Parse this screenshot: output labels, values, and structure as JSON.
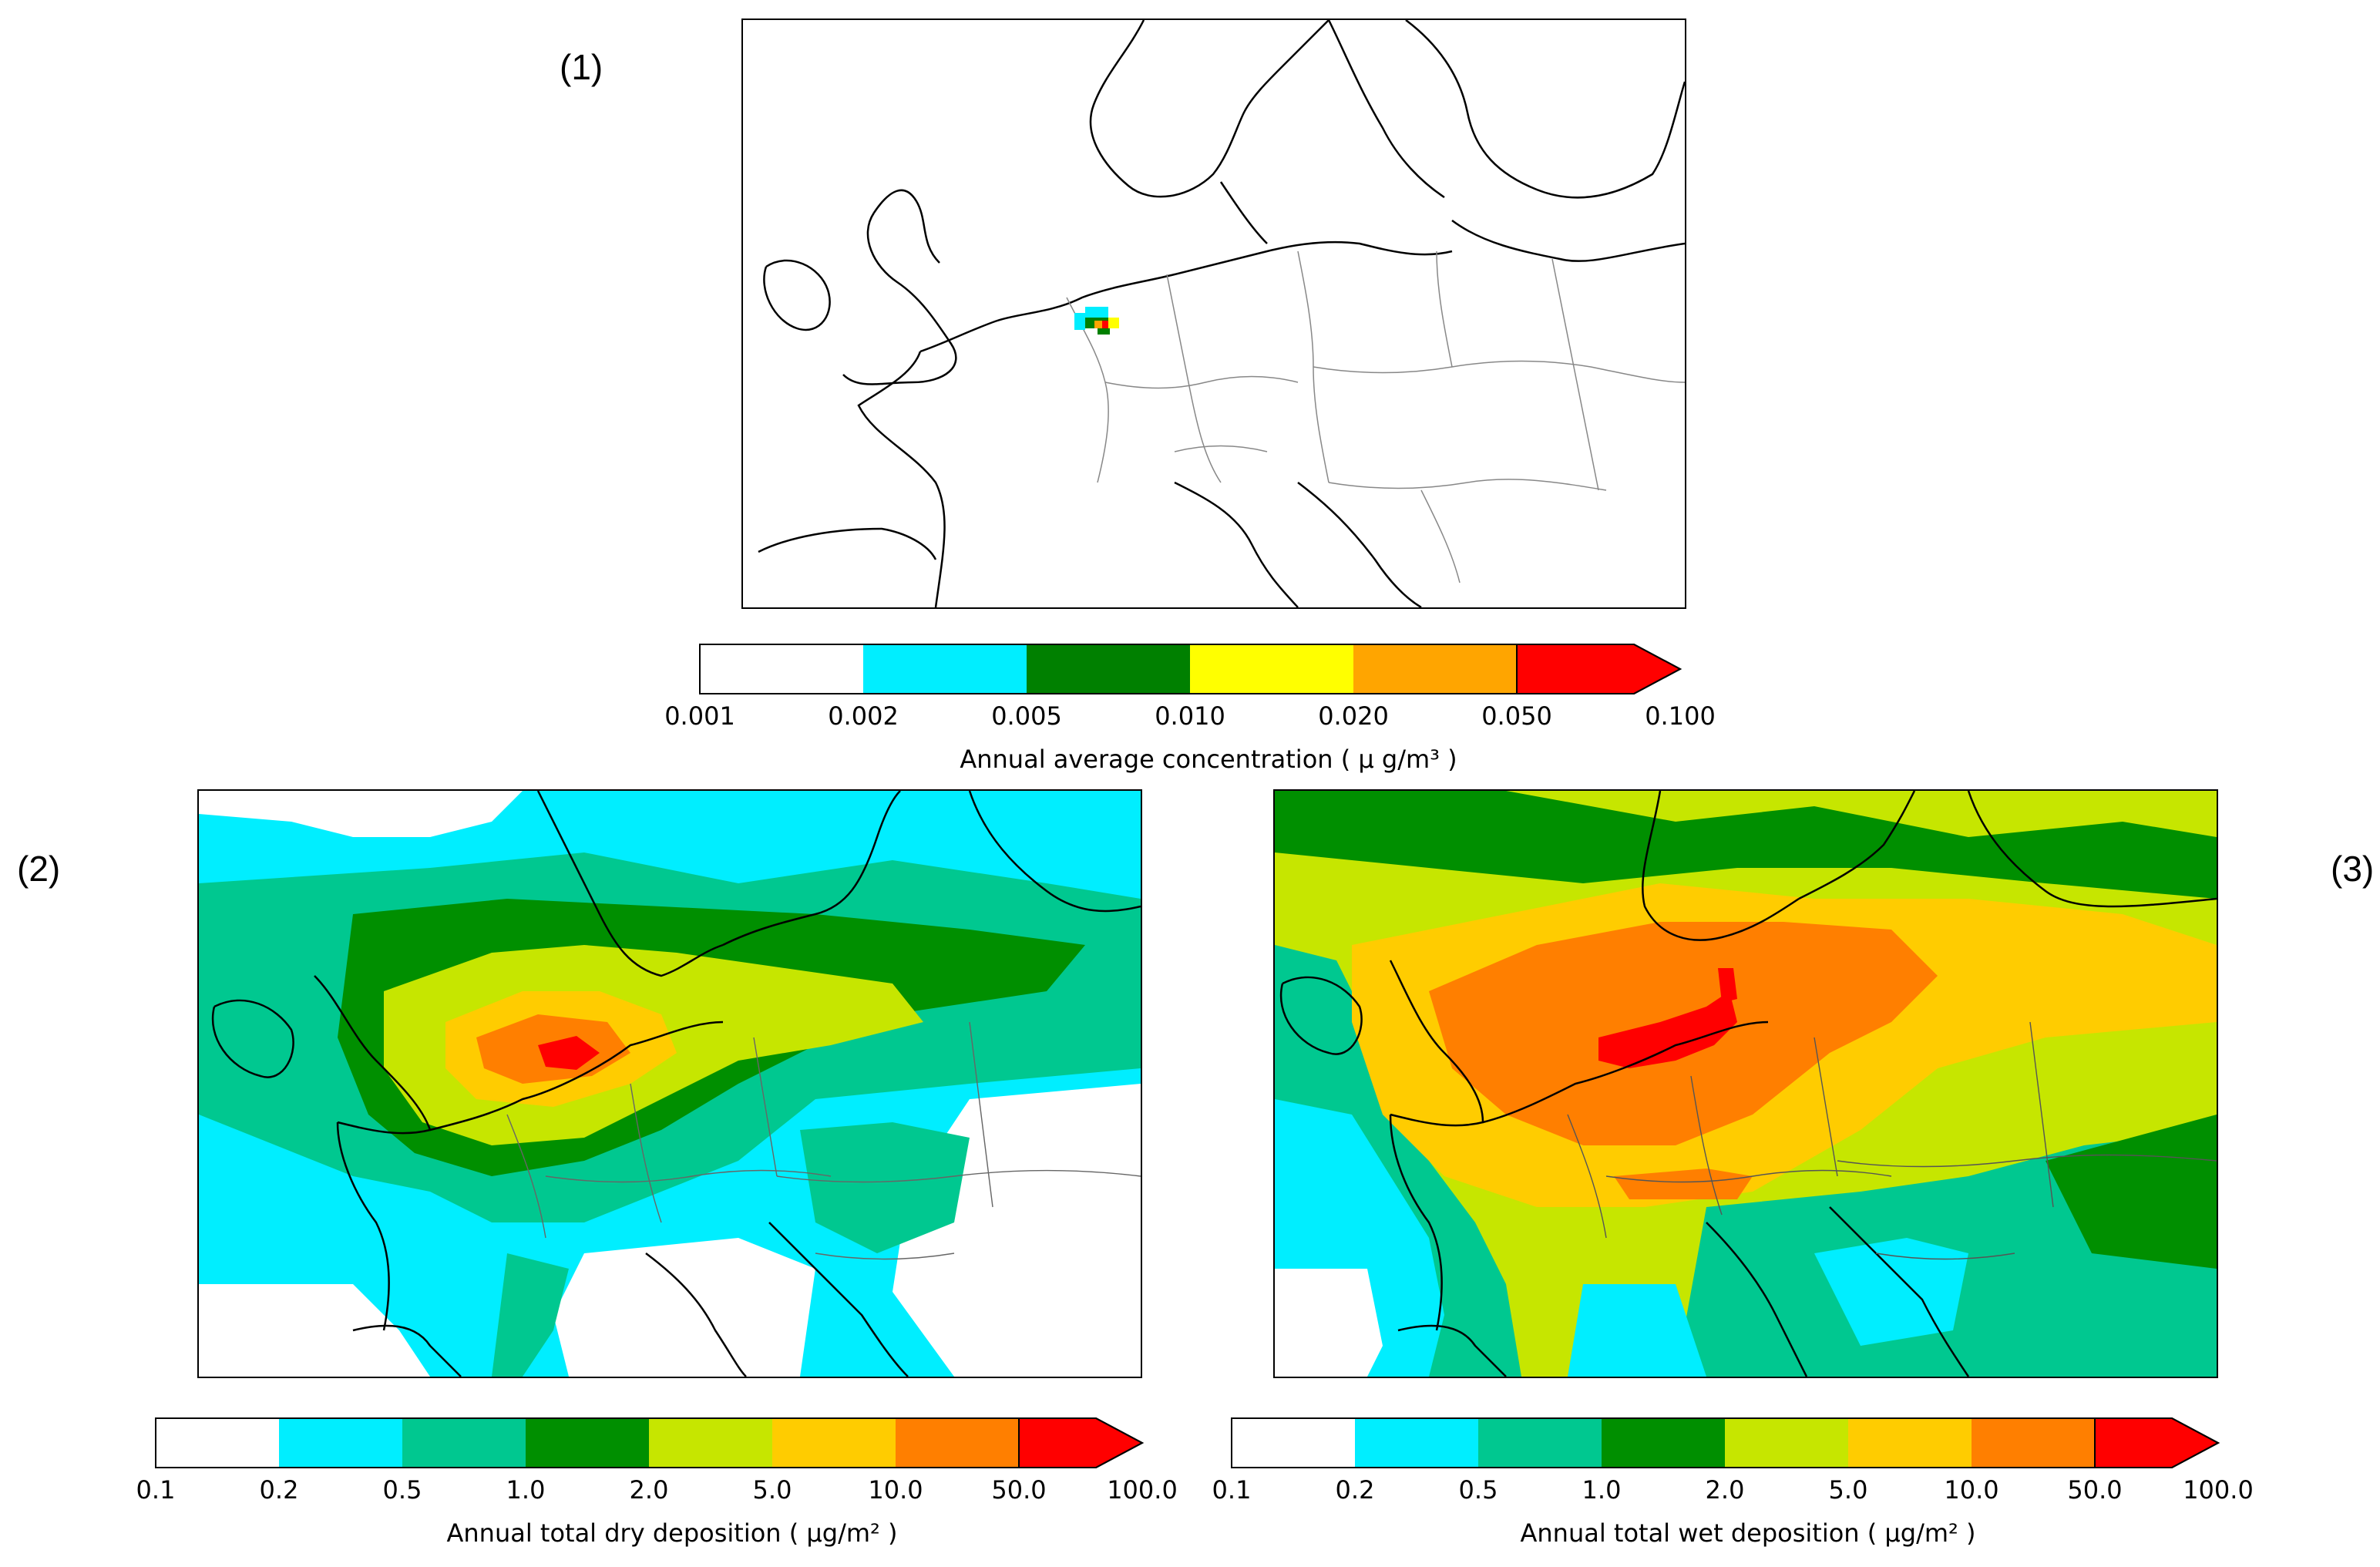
{
  "panels": [
    {
      "label": "(1)",
      "colorbar": {
        "ticks": [
          "0.001",
          "0.002",
          "0.005",
          "0.010",
          "0.020",
          "0.050",
          "0.100"
        ],
        "colors": [
          "#ffffff",
          "#00eeff",
          "#008000",
          "#ffff00",
          "#ffa500",
          "#ff0000"
        ],
        "title": "Annual average concentration",
        "unit": "( μ g/m³ )"
      }
    },
    {
      "label": "(2)",
      "colorbar": {
        "ticks": [
          "0.1",
          "0.2",
          "0.5",
          "1.0",
          "2.0",
          "5.0",
          "10.0",
          "50.0",
          "100.0"
        ],
        "colors": [
          "#ffffff",
          "#00eeff",
          "#00c890",
          "#008f00",
          "#c6e600",
          "#ffcc00",
          "#ff7f00",
          "#ff0000"
        ],
        "title": "Annual total dry deposition",
        "unit": "( μg/m² )"
      }
    },
    {
      "label": "(3)",
      "colorbar": {
        "ticks": [
          "0.1",
          "0.2",
          "0.5",
          "1.0",
          "2.0",
          "5.0",
          "10.0",
          "50.0",
          "100.0"
        ],
        "colors": [
          "#ffffff",
          "#00eeff",
          "#00c890",
          "#008f00",
          "#c6e600",
          "#ffcc00",
          "#ff7f00",
          "#ff0000"
        ],
        "title": "Annual total wet deposition",
        "unit": "( μg/m² )"
      }
    }
  ]
}
